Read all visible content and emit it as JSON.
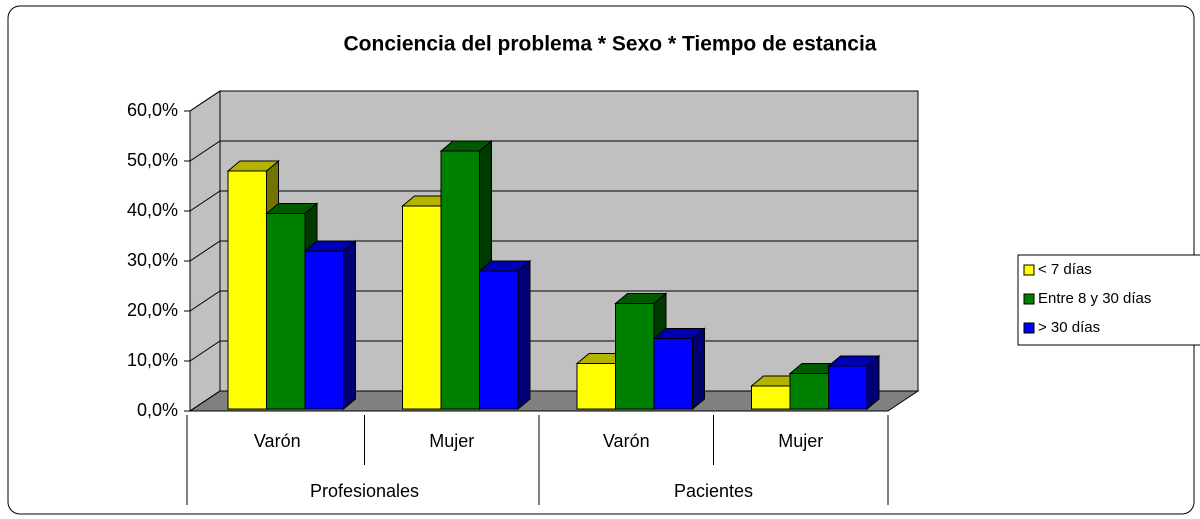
{
  "chart_data": {
    "type": "bar3d",
    "title": "Conciencia del problema * Sexo * Tiempo de estancia",
    "categories": [
      "Varón",
      "Mujer",
      "Varón",
      "Mujer"
    ],
    "groups": [
      "Profesionales",
      "Pacientes"
    ],
    "series": [
      {
        "name": "< 7 días",
        "color": "#ffff00",
        "values": [
          48,
          41,
          9.5,
          5
        ]
      },
      {
        "name": "Entre 8 y 30 días",
        "color": "#008000",
        "values": [
          39.5,
          52,
          21.5,
          7.5
        ]
      },
      {
        "name": "> 30 días",
        "color": "#0000ff",
        "values": [
          32,
          28,
          14.5,
          9
        ]
      }
    ],
    "ylim": [
      0,
      60
    ],
    "yticks": [
      {
        "value": 0,
        "label": "0,0%"
      },
      {
        "value": 10,
        "label": "10,0%"
      },
      {
        "value": 20,
        "label": "20,0%"
      },
      {
        "value": 30,
        "label": "30,0%"
      },
      {
        "value": 40,
        "label": "40,0%"
      },
      {
        "value": 50,
        "label": "50,0%"
      },
      {
        "value": 60,
        "label": "60,0%"
      }
    ],
    "grid": true,
    "legend": "right"
  }
}
